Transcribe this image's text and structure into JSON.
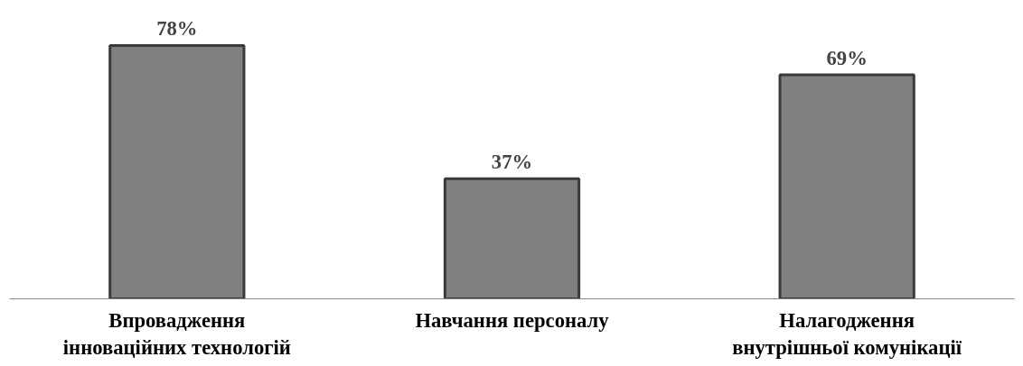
{
  "chart_data": {
    "type": "bar",
    "categories": [
      "Впровадження інноваційних технологій",
      "Навчання персоналу",
      "Налагодження внутрішньої комунікації"
    ],
    "values": [
      78,
      37,
      69
    ],
    "value_labels": [
      "78%",
      "37%",
      "69%"
    ],
    "color": "#808080",
    "tick_labels": "x"
  }
}
